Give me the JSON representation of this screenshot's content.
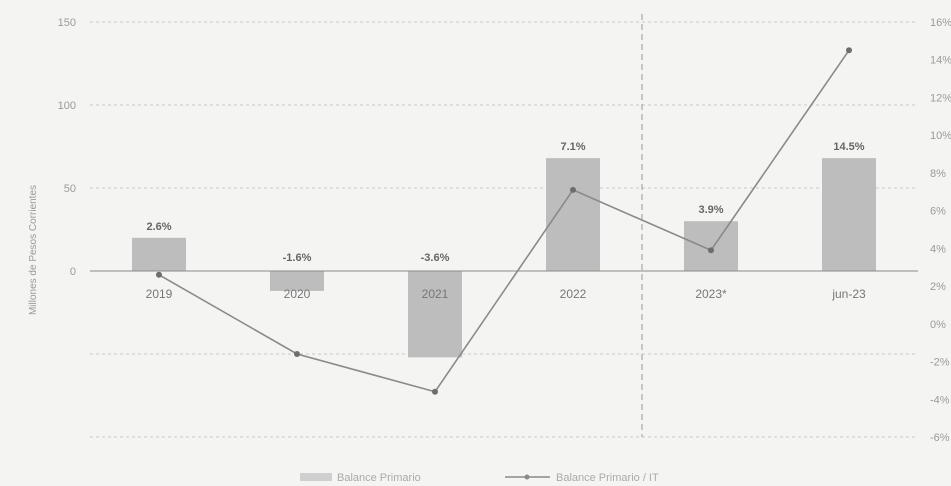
{
  "chart_data": {
    "type": "bar",
    "categories": [
      "2019",
      "2020",
      "2021",
      "2022",
      "2023*",
      "jun-23"
    ],
    "ylabel": "Millones de Pesos Corrientes",
    "ylim": [
      -100,
      150
    ],
    "y2lim": [
      -6,
      16
    ],
    "left_ticks": [
      "150",
      "100",
      "50",
      "0",
      "",
      ""
    ],
    "right_ticks": [
      "16%",
      "14%",
      "12%",
      "10%",
      "8%",
      "6%",
      "4%",
      "2%",
      "0%",
      "-2%",
      "-4%",
      "-6%"
    ],
    "series": [
      {
        "name": "Balance Primario",
        "type": "bar",
        "values": [
          20,
          -12,
          -52,
          68,
          30,
          68
        ],
        "color": "#bdbdbd"
      },
      {
        "name": "Balance Primario / IT",
        "type": "line",
        "axis": "right",
        "values": [
          2.6,
          -1.6,
          -3.6,
          7.1,
          3.9,
          14.5
        ],
        "data_labels": [
          "2.6%",
          "-1.6%",
          "-3.6%",
          "7.1%",
          "3.9%",
          "14.5%"
        ],
        "color": "#8a8a8a"
      }
    ],
    "legend": [
      "Balance Primario",
      "Balance Primario / IT"
    ],
    "legend_position": "bottom",
    "grid": true,
    "projection_divider_before": "2023*"
  }
}
